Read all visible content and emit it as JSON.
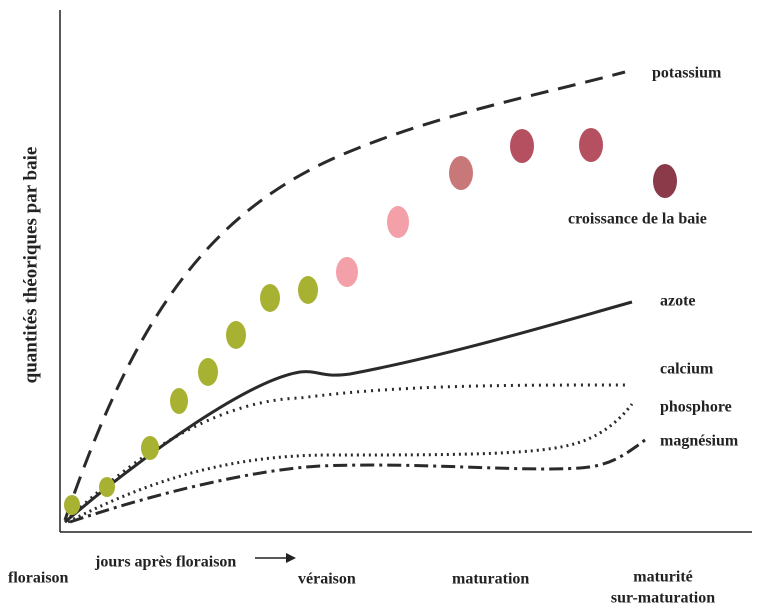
{
  "y_axis_label": "quantités théoriques par baie",
  "x_axis_label": "jours après floraison",
  "stages": [
    "floraison",
    "véraison",
    "maturation",
    "maturité",
    "sur-maturation"
  ],
  "curve_labels": [
    "potassium",
    "croissance de la baie",
    "azote",
    "calcium",
    "phosphore",
    "magnésium"
  ]
}
